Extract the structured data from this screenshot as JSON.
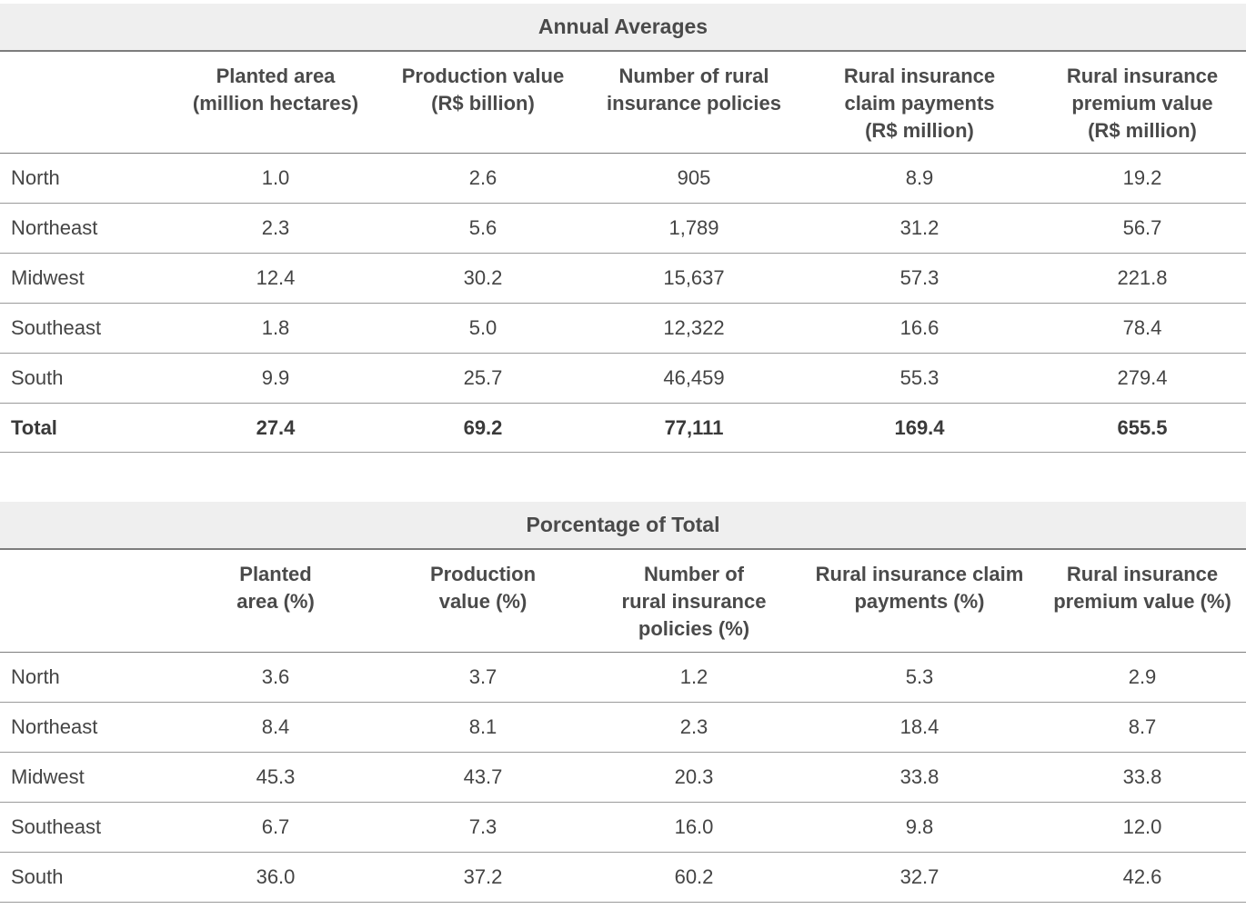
{
  "annual": {
    "title": "Annual Averages",
    "headers": [
      "",
      "Planted area\n(million hectares)",
      "Production value\n(R$ billion)",
      "Number of rural\ninsurance policies",
      "Rural insurance\nclaim payments\n(R$ million)",
      "Rural insurance\npremium value\n(R$ million)"
    ],
    "rows": [
      [
        "North",
        "1.0",
        "2.6",
        "905",
        "8.9",
        "19.2"
      ],
      [
        "Northeast",
        "2.3",
        "5.6",
        "1,789",
        "31.2",
        "56.7"
      ],
      [
        "Midwest",
        "12.4",
        "30.2",
        "15,637",
        "57.3",
        "221.8"
      ],
      [
        "Southeast",
        "1.8",
        "5.0",
        "12,322",
        "16.6",
        "78.4"
      ],
      [
        "South",
        "9.9",
        "25.7",
        "46,459",
        "55.3",
        "279.4"
      ]
    ],
    "total": [
      "Total",
      "27.4",
      "69.2",
      "77,111",
      "169.4",
      "655.5"
    ]
  },
  "percent": {
    "title": "Porcentage of Total",
    "headers": [
      "",
      "Planted\narea  (%)",
      "Production\nvalue (%)",
      "Number of\nrural insurance\npolicies (%)",
      "Rural insurance claim\npayments (%)",
      "Rural insurance\npremium value (%)"
    ],
    "rows": [
      [
        "North",
        "3.6",
        "3.7",
        "1.2",
        "5.3",
        "2.9"
      ],
      [
        "Northeast",
        "8.4",
        "8.1",
        "2.3",
        "18.4",
        "8.7"
      ],
      [
        "Midwest",
        "45.3",
        "43.7",
        "20.3",
        "33.8",
        "33.8"
      ],
      [
        "Southeast",
        "6.7",
        "7.3",
        "16.0",
        "9.8",
        "12.0"
      ],
      [
        "South",
        "36.0",
        "37.2",
        "60.2",
        "32.7",
        "42.6"
      ]
    ]
  }
}
